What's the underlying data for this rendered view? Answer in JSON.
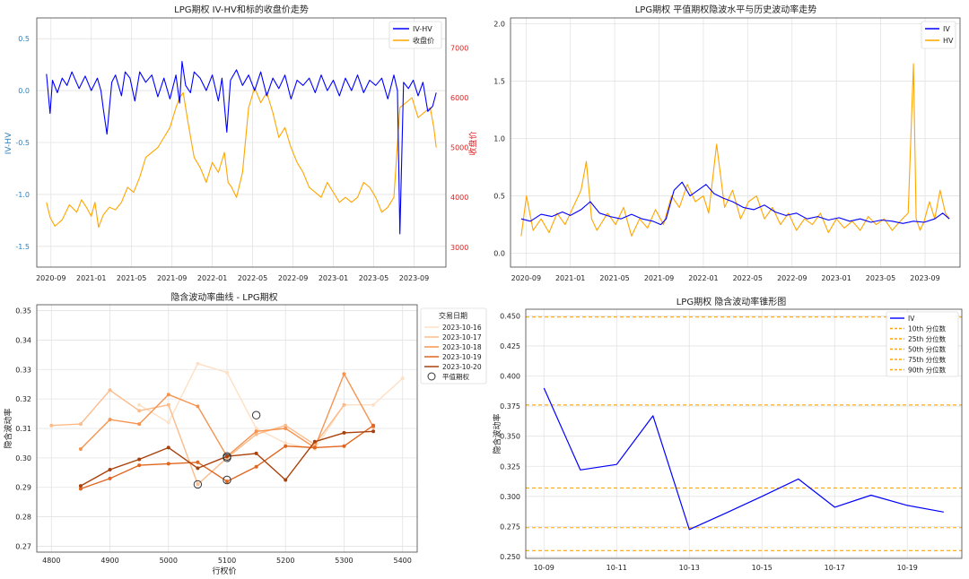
{
  "chart_data": [
    {
      "type": "line",
      "title": "LPG期权 IV-HV和标的收盘价走势",
      "xlabel": "",
      "ylabel": "IV-HV",
      "y2label": "收盘价",
      "xlim": [
        2020.55,
        2023.93
      ],
      "ylim": [
        -1.7,
        0.7
      ],
      "y2lim": [
        2600,
        7600
      ],
      "x_ticks": [
        "2020-09",
        "2021-01",
        "2021-05",
        "2021-09",
        "2022-01",
        "2022-05",
        "2022-09",
        "2023-01",
        "2023-05",
        "2023-09"
      ],
      "x_tick_values": [
        2020.667,
        2021.0,
        2021.333,
        2021.667,
        2022.0,
        2022.333,
        2022.667,
        2023.0,
        2023.333,
        2023.667
      ],
      "y_ticks": [
        0.5,
        0.0,
        -0.5,
        -1.0,
        -1.5
      ],
      "y_tick_labels": [
        "0.5",
        "0.0",
        "-0.5",
        "-1.0",
        "-1.5"
      ],
      "y2_ticks": [
        7000,
        6000,
        5000,
        4000,
        3000
      ],
      "legend": [
        "IV-HV",
        "收盘价"
      ],
      "legend_position": "top-right",
      "colors": {
        "iv_hv": "#0000ff",
        "close": "#ffa500",
        "y2_axis": "#e02020",
        "y_axis": "#2980c0"
      },
      "series": [
        {
          "name": "IV-HV",
          "axis": "left",
          "x": [
            2020.63,
            2020.66,
            2020.68,
            2020.72,
            2020.76,
            2020.8,
            2020.84,
            2020.9,
            2020.95,
            2021.0,
            2021.05,
            2021.08,
            2021.1,
            2021.13,
            2021.17,
            2021.2,
            2021.25,
            2021.28,
            2021.32,
            2021.36,
            2021.4,
            2021.45,
            2021.5,
            2021.55,
            2021.6,
            2021.65,
            2021.7,
            2021.73,
            2021.75,
            2021.78,
            2021.82,
            2021.85,
            2021.9,
            2021.95,
            2022.0,
            2022.05,
            2022.08,
            2022.12,
            2022.15,
            2022.2,
            2022.25,
            2022.3,
            2022.35,
            2022.4,
            2022.45,
            2022.5,
            2022.55,
            2022.6,
            2022.65,
            2022.7,
            2022.75,
            2022.8,
            2022.85,
            2022.9,
            2022.95,
            2023.0,
            2023.05,
            2023.1,
            2023.15,
            2023.2,
            2023.25,
            2023.3,
            2023.35,
            2023.4,
            2023.45,
            2023.5,
            2023.53,
            2023.55,
            2023.58,
            2023.62,
            2023.66,
            2023.7,
            2023.74,
            2023.78,
            2023.82,
            2023.85
          ],
          "values": [
            0.16,
            -0.22,
            0.1,
            -0.02,
            0.12,
            0.05,
            0.18,
            0.02,
            0.14,
            0.0,
            0.12,
            0.0,
            -0.18,
            -0.42,
            0.08,
            0.15,
            -0.05,
            0.18,
            0.12,
            -0.1,
            0.18,
            0.08,
            0.15,
            -0.06,
            0.12,
            -0.08,
            0.15,
            -0.12,
            0.28,
            0.05,
            -0.02,
            0.18,
            0.12,
            0.0,
            0.15,
            -0.1,
            0.12,
            -0.4,
            0.1,
            0.2,
            0.05,
            0.15,
            0.0,
            0.18,
            -0.05,
            0.12,
            0.02,
            0.15,
            -0.08,
            0.1,
            0.05,
            0.12,
            -0.02,
            0.15,
            0.0,
            0.1,
            -0.05,
            0.12,
            0.0,
            0.15,
            -0.02,
            0.1,
            0.05,
            0.12,
            -0.08,
            0.15,
            0.0,
            -1.38,
            0.08,
            0.02,
            0.1,
            -0.05,
            0.08,
            -0.2,
            -0.15,
            -0.02
          ]
        },
        {
          "name": "收盘价",
          "axis": "right",
          "x": [
            2020.63,
            2020.66,
            2020.7,
            2020.76,
            2020.82,
            2020.88,
            2020.92,
            2020.96,
            2021.0,
            2021.03,
            2021.06,
            2021.1,
            2021.15,
            2021.2,
            2021.25,
            2021.3,
            2021.35,
            2021.4,
            2021.45,
            2021.5,
            2021.55,
            2021.6,
            2021.65,
            2021.7,
            2021.73,
            2021.76,
            2021.8,
            2021.85,
            2021.9,
            2021.95,
            2022.0,
            2022.05,
            2022.1,
            2022.13,
            2022.16,
            2022.2,
            2022.25,
            2022.3,
            2022.35,
            2022.4,
            2022.45,
            2022.5,
            2022.55,
            2022.6,
            2022.65,
            2022.7,
            2022.75,
            2022.8,
            2022.85,
            2022.9,
            2022.95,
            2023.0,
            2023.05,
            2023.1,
            2023.15,
            2023.2,
            2023.25,
            2023.3,
            2023.35,
            2023.4,
            2023.45,
            2023.5,
            2023.55,
            2023.6,
            2023.65,
            2023.7,
            2023.75,
            2023.8,
            2023.83,
            2023.85
          ],
          "values": [
            3900,
            3600,
            3420,
            3550,
            3850,
            3700,
            3950,
            3800,
            3620,
            3900,
            3400,
            3650,
            3800,
            3750,
            3900,
            4200,
            4100,
            4400,
            4800,
            4900,
            5000,
            5200,
            5400,
            5800,
            6000,
            6100,
            5500,
            4800,
            4600,
            4300,
            4700,
            4500,
            4900,
            4300,
            4200,
            4000,
            4500,
            5800,
            6200,
            5900,
            6100,
            5700,
            5200,
            5400,
            5000,
            4700,
            4500,
            4200,
            4100,
            4000,
            4300,
            4100,
            3900,
            4000,
            3900,
            4000,
            4300,
            4200,
            4000,
            3700,
            3800,
            4000,
            5800,
            5900,
            6000,
            5600,
            5700,
            5800,
            5400,
            5000
          ]
        }
      ]
    },
    {
      "type": "line",
      "title": "LPG期权 平值期权隐波水平与历史波动率走势",
      "xlabel": "",
      "ylabel": "",
      "xlim": [
        2020.55,
        2023.93
      ],
      "ylim": [
        -0.12,
        2.05
      ],
      "x_ticks": [
        "2020-09",
        "2021-01",
        "2021-05",
        "2021-09",
        "2022-01",
        "2022-05",
        "2022-09",
        "2023-01",
        "2023-05",
        "2023-09"
      ],
      "x_tick_values": [
        2020.667,
        2021.0,
        2021.333,
        2021.667,
        2022.0,
        2022.333,
        2022.667,
        2023.0,
        2023.333,
        2023.667
      ],
      "y_ticks": [
        2.0,
        1.5,
        1.0,
        0.5,
        0.0
      ],
      "y_tick_labels": [
        "2.0",
        "1.5",
        "1.0",
        "0.5",
        "0.0"
      ],
      "legend": [
        "IV",
        "HV"
      ],
      "legend_position": "top-right",
      "colors": {
        "iv": "#0000ff",
        "hv": "#ffa500"
      },
      "series": [
        {
          "name": "IV",
          "x": [
            2020.63,
            2020.7,
            2020.78,
            2020.86,
            2020.94,
            2021.0,
            2021.08,
            2021.15,
            2021.22,
            2021.3,
            2021.38,
            2021.46,
            2021.54,
            2021.62,
            2021.68,
            2021.72,
            2021.78,
            2021.84,
            2021.9,
            2021.96,
            2022.02,
            2022.08,
            2022.15,
            2022.22,
            2022.3,
            2022.38,
            2022.46,
            2022.54,
            2022.62,
            2022.7,
            2022.78,
            2022.86,
            2022.94,
            2023.02,
            2023.1,
            2023.18,
            2023.26,
            2023.34,
            2023.42,
            2023.5,
            2023.58,
            2023.66,
            2023.74,
            2023.8,
            2023.85
          ],
          "values": [
            0.3,
            0.28,
            0.34,
            0.32,
            0.36,
            0.33,
            0.38,
            0.45,
            0.35,
            0.32,
            0.3,
            0.34,
            0.3,
            0.28,
            0.25,
            0.3,
            0.55,
            0.62,
            0.5,
            0.55,
            0.6,
            0.52,
            0.48,
            0.45,
            0.4,
            0.38,
            0.42,
            0.36,
            0.33,
            0.35,
            0.3,
            0.32,
            0.29,
            0.31,
            0.28,
            0.3,
            0.27,
            0.29,
            0.28,
            0.26,
            0.28,
            0.27,
            0.3,
            0.35,
            0.3
          ]
        },
        {
          "name": "HV",
          "x": [
            2020.63,
            2020.67,
            2020.72,
            2020.78,
            2020.84,
            2020.9,
            2020.96,
            2021.02,
            2021.08,
            2021.12,
            2021.16,
            2021.2,
            2021.28,
            2021.34,
            2021.4,
            2021.46,
            2021.52,
            2021.58,
            2021.64,
            2021.7,
            2021.76,
            2021.82,
            2021.88,
            2021.94,
            2022.0,
            2022.04,
            2022.1,
            2022.16,
            2022.22,
            2022.28,
            2022.34,
            2022.4,
            2022.46,
            2022.52,
            2022.58,
            2022.64,
            2022.7,
            2022.76,
            2022.82,
            2022.88,
            2022.94,
            2023.0,
            2023.06,
            2023.12,
            2023.18,
            2023.24,
            2023.3,
            2023.36,
            2023.42,
            2023.48,
            2023.54,
            2023.58,
            2023.6,
            2023.63,
            2023.66,
            2023.7,
            2023.74,
            2023.78,
            2023.82,
            2023.85
          ],
          "values": [
            0.15,
            0.5,
            0.2,
            0.3,
            0.18,
            0.35,
            0.25,
            0.4,
            0.55,
            0.8,
            0.3,
            0.2,
            0.35,
            0.25,
            0.4,
            0.15,
            0.3,
            0.22,
            0.38,
            0.25,
            0.5,
            0.4,
            0.6,
            0.45,
            0.5,
            0.35,
            0.95,
            0.4,
            0.55,
            0.3,
            0.45,
            0.5,
            0.3,
            0.4,
            0.25,
            0.35,
            0.2,
            0.3,
            0.25,
            0.35,
            0.18,
            0.3,
            0.22,
            0.28,
            0.2,
            0.32,
            0.25,
            0.3,
            0.2,
            0.28,
            0.35,
            1.65,
            0.3,
            0.2,
            0.28,
            0.45,
            0.3,
            0.55,
            0.35,
            0.3
          ]
        }
      ]
    },
    {
      "type": "line",
      "title": "隐含波动率曲线 - LPG期权",
      "xlabel": "行权价",
      "ylabel": "隐含波动率",
      "xlim": [
        4775,
        5425
      ],
      "ylim": [
        0.268,
        0.352
      ],
      "x_ticks": [
        4800,
        4900,
        5000,
        5100,
        5200,
        5300,
        5400
      ],
      "y_ticks": [
        0.35,
        0.34,
        0.33,
        0.32,
        0.31,
        0.3,
        0.29,
        0.28,
        0.27
      ],
      "y_tick_labels": [
        "0.35",
        "0.34",
        "0.33",
        "0.32",
        "0.31",
        "0.30",
        "0.29",
        "0.28",
        "0.27"
      ],
      "legend_title": "交易日期",
      "legend": [
        "2023-10-16",
        "2023-10-17",
        "2023-10-18",
        "2023-10-19",
        "2023-10-20",
        "平值期权"
      ],
      "legend_position": "top-right",
      "series": [
        {
          "name": "2023-10-16",
          "color": "#fde0c5",
          "x": [
            4950,
            5000,
            5050,
            5100,
            5150,
            5200,
            5250,
            5300,
            5350,
            5400
          ],
          "values": [
            0.318,
            0.312,
            0.332,
            0.329,
            0.31,
            0.305,
            0.303,
            0.318,
            0.318,
            0.327
          ]
        },
        {
          "name": "2023-10-17",
          "color": "#fcbb8a",
          "x": [
            4800,
            4850,
            4900,
            4950,
            5000,
            5050,
            5100,
            5150,
            5200,
            5250,
            5300
          ],
          "values": [
            0.311,
            0.3115,
            0.323,
            0.316,
            0.318,
            0.291,
            0.3,
            0.308,
            0.311,
            0.3045,
            0.318
          ]
        },
        {
          "name": "2023-10-18",
          "color": "#f59451",
          "x": [
            4850,
            4900,
            4950,
            5000,
            5050,
            5100,
            5150,
            5200,
            5250,
            5300,
            5350
          ],
          "values": [
            0.303,
            0.313,
            0.3115,
            0.3215,
            0.3175,
            0.3005,
            0.309,
            0.31,
            0.3035,
            0.3285,
            0.3105
          ]
        },
        {
          "name": "2023-10-19",
          "color": "#e0661f",
          "x": [
            4850,
            4900,
            4950,
            5000,
            5050,
            5100,
            5150,
            5200,
            5250,
            5300,
            5350
          ],
          "values": [
            0.2895,
            0.293,
            0.2975,
            0.298,
            0.2985,
            0.292,
            0.297,
            0.304,
            0.3035,
            0.304,
            0.311
          ]
        },
        {
          "name": "2023-10-20",
          "color": "#a8410b",
          "x": [
            4850,
            4900,
            4950,
            5000,
            5050,
            5100,
            5150,
            5200,
            5250,
            5300,
            5350
          ],
          "values": [
            0.2905,
            0.296,
            0.2995,
            0.3035,
            0.2965,
            0.3005,
            0.3015,
            0.2925,
            0.3055,
            0.3085,
            0.309
          ]
        }
      ],
      "atm_points": {
        "name": "平值期权",
        "x": [
          5050,
          5100,
          5100,
          5100,
          5150
        ],
        "values": [
          0.291,
          0.3,
          0.3005,
          0.2925,
          0.3145
        ]
      }
    },
    {
      "type": "line",
      "title": "LPG期权 隐含波动率锥形图",
      "xlabel": "",
      "ylabel": "隐含波动率",
      "xlim": [
        -0.5,
        11.5
      ],
      "ylim": [
        0.2485,
        0.4555
      ],
      "x_ticks": [
        "10-09",
        "10-11",
        "10-13",
        "10-15",
        "10-17",
        "10-19"
      ],
      "x_tick_values": [
        0,
        2,
        4,
        6,
        8,
        10
      ],
      "y_ticks": [
        0.45,
        0.425,
        0.4,
        0.375,
        0.35,
        0.325,
        0.3,
        0.275,
        0.25
      ],
      "y_tick_labels": [
        "0.450",
        "0.425",
        "0.400",
        "0.375",
        "0.350",
        "0.325",
        "0.300",
        "0.275",
        "0.250"
      ],
      "legend": [
        "IV",
        "10th 分位数",
        "25th 分位数",
        "50th 分位数",
        "75th 分位数",
        "90th 分位数"
      ],
      "legend_position": "top-right",
      "colors": {
        "iv": "#0000ff",
        "percentile": "#ffa500"
      },
      "series": [
        {
          "name": "IV",
          "x": [
            0,
            1,
            2,
            3,
            4,
            5,
            6,
            7,
            8,
            9,
            10,
            11
          ],
          "values": [
            0.39,
            0.322,
            0.3265,
            0.367,
            0.2725,
            0.286,
            0.3,
            0.3145,
            0.291,
            0.301,
            0.2925,
            0.287
          ]
        }
      ],
      "percentiles": [
        {
          "name": "10th 分位数",
          "value": 0.255
        },
        {
          "name": "25th 分位数",
          "value": 0.274
        },
        {
          "name": "50th 分位数",
          "value": 0.307
        },
        {
          "name": "75th 分位数",
          "value": 0.376
        },
        {
          "name": "90th 分位数",
          "value": 0.449
        }
      ]
    }
  ]
}
